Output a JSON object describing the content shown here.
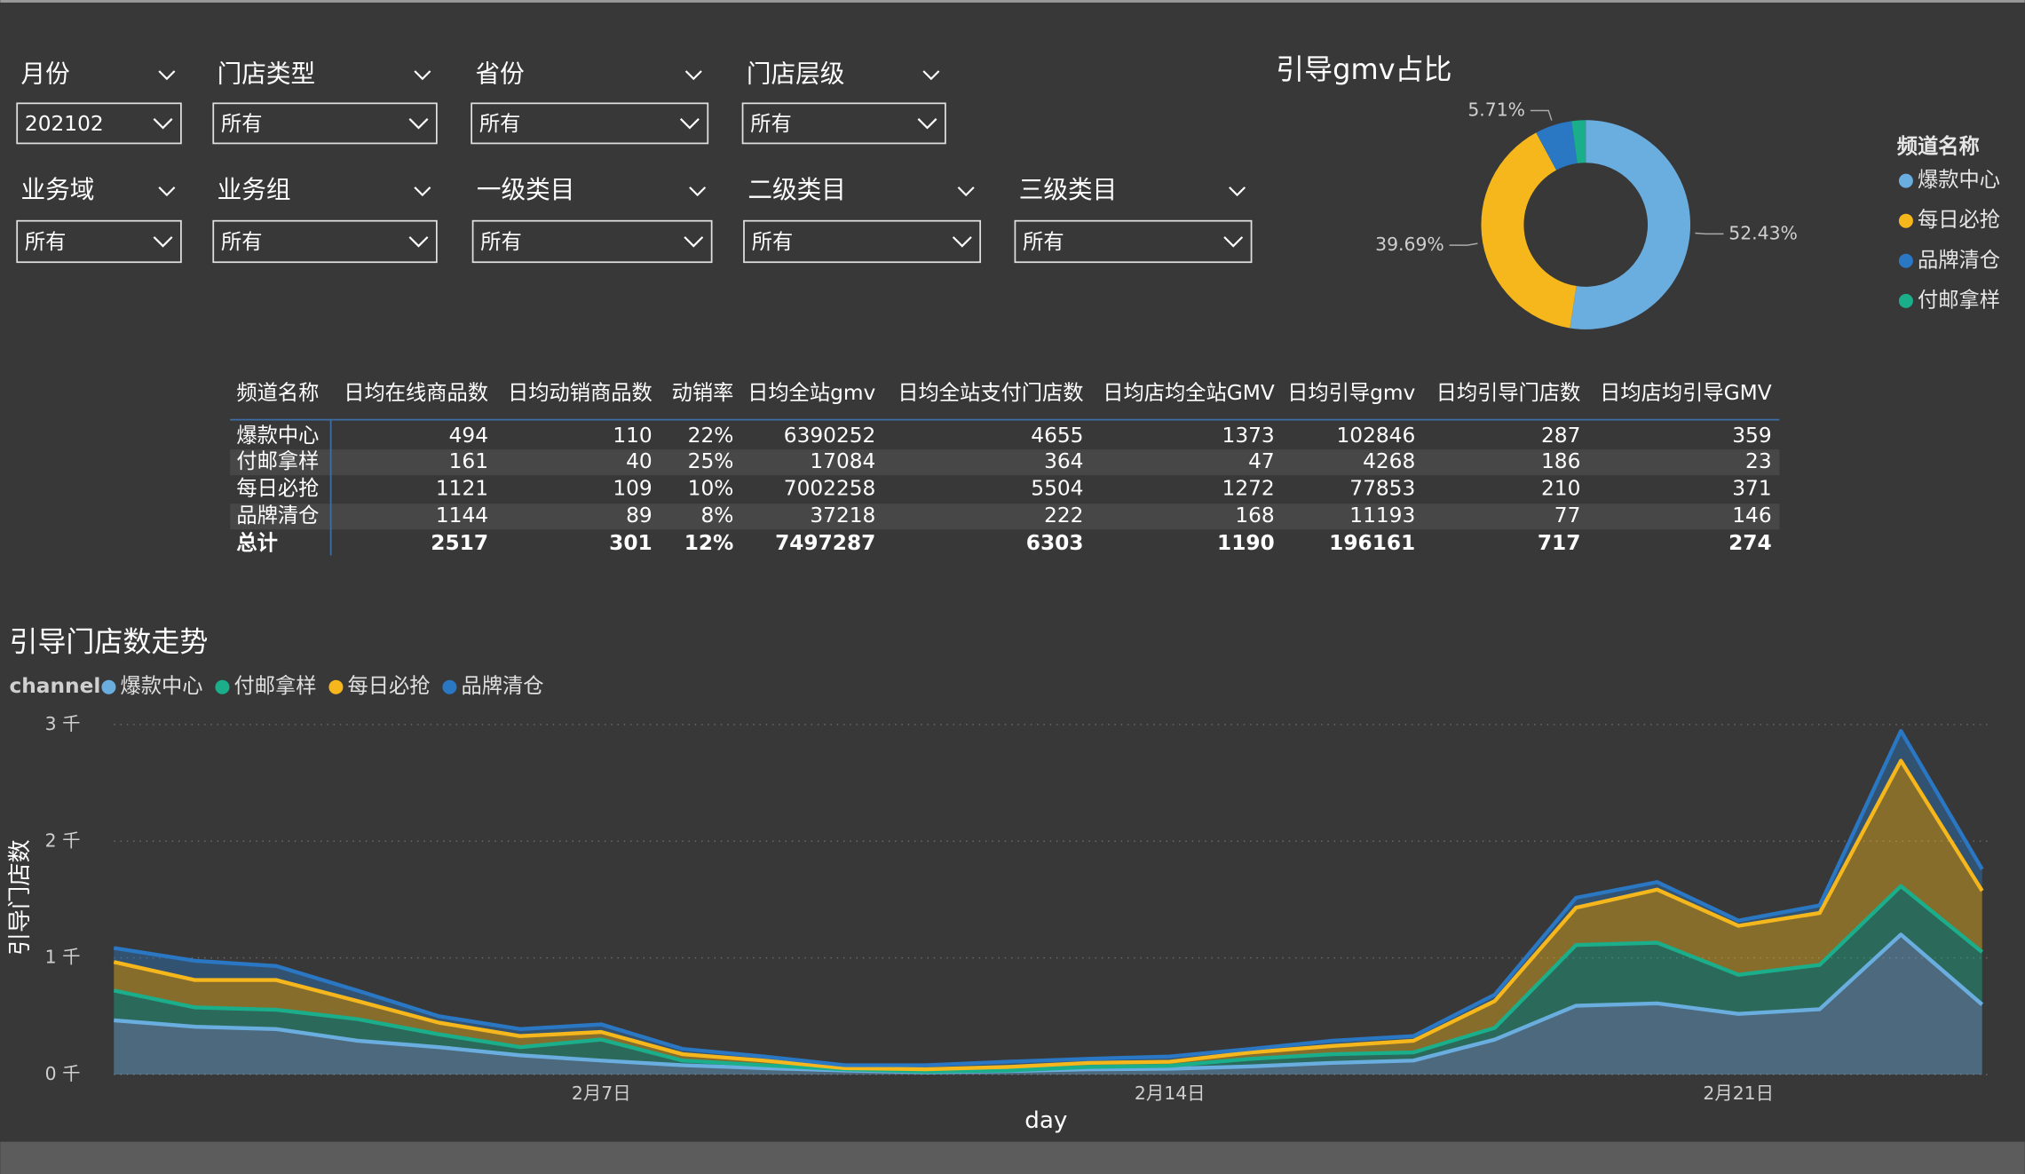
{
  "filters": [
    {
      "label": "月份",
      "value": "202102"
    },
    {
      "label": "门店类型",
      "value": "所有"
    },
    {
      "label": "省份",
      "value": "所有"
    },
    {
      "label": "门店层级",
      "value": "所有"
    },
    {
      "label": "业务域",
      "value": "所有"
    },
    {
      "label": "业务组",
      "value": "所有"
    },
    {
      "label": "一级类目",
      "value": "所有"
    },
    {
      "label": "二级类目",
      "value": "所有"
    },
    {
      "label": "三级类目",
      "value": "所有"
    }
  ],
  "table": {
    "header": [
      "频道名称",
      "日均在线商品数",
      "日均动销商品数",
      "动销率",
      "日均全站gmv",
      "日均全站支付门店数",
      "日均店均全站GMV",
      "日均引导gmv",
      "日均引导门店数",
      "日均店均引导GMV"
    ],
    "rows": [
      [
        "爆款中心",
        "494",
        "110",
        "22%",
        "6390252",
        "4655",
        "1373",
        "102846",
        "287",
        "359"
      ],
      [
        "付邮拿样",
        "161",
        "40",
        "25%",
        "17084",
        "364",
        "47",
        "4268",
        "186",
        "23"
      ],
      [
        "每日必抢",
        "1121",
        "109",
        "10%",
        "7002258",
        "5504",
        "1272",
        "77853",
        "210",
        "371"
      ],
      [
        "品牌清仓",
        "1144",
        "89",
        "8%",
        "37218",
        "222",
        "168",
        "11193",
        "77",
        "146"
      ]
    ],
    "total": [
      "总计",
      "2517",
      "301",
      "12%",
      "7497287",
      "6303",
      "1190",
      "196161",
      "717",
      "274"
    ]
  },
  "chart_data": [
    {
      "type": "pie",
      "donut": true,
      "title": "引导gmv占比",
      "legend_title": "频道名称",
      "categories": [
        "爆款中心",
        "每日必抢",
        "品牌清仓",
        "付邮拿样"
      ],
      "values": [
        52.43,
        39.69,
        5.71,
        2.17
      ],
      "value_labels": [
        "52.43%",
        "39.69%",
        "5.71%",
        null
      ],
      "colors": [
        "#6aaee0",
        "#f5b71c",
        "#2a77c4",
        "#1aae8b"
      ]
    },
    {
      "type": "area",
      "stacked": true,
      "title": "引导门店数走势",
      "legend_title": "channel",
      "xlabel": "day",
      "ylabel": "引导门店数",
      "x": [
        null,
        null,
        null,
        null,
        null,
        null,
        "2月7日",
        null,
        null,
        null,
        null,
        null,
        null,
        "2月14日",
        null,
        null,
        null,
        null,
        null,
        null,
        "2月21日",
        null,
        null,
        null
      ],
      "ylim": [
        0,
        3000
      ],
      "yticks": [
        {
          "value": 0,
          "label": "0 千"
        },
        {
          "value": 1000,
          "label": "1 千"
        },
        {
          "value": 2000,
          "label": "2 千"
        },
        {
          "value": 3000,
          "label": "3 千"
        }
      ],
      "grid": true,
      "series": [
        {
          "name": "爆款中心",
          "color": "#6aaee0",
          "values": [
            465,
            410,
            390,
            290,
            235,
            165,
            120,
            80,
            55,
            35,
            20,
            30,
            45,
            50,
            70,
            100,
            120,
            300,
            590,
            610,
            520,
            560,
            1200,
            600
          ]
        },
        {
          "name": "付邮拿样",
          "color": "#1aae8b",
          "values": [
            255,
            165,
            165,
            185,
            110,
            70,
            180,
            40,
            25,
            10,
            5,
            5,
            20,
            25,
            65,
            75,
            70,
            100,
            520,
            520,
            335,
            380,
            415,
            450
          ]
        },
        {
          "name": "每日必抢",
          "color": "#f5b71c",
          "values": [
            245,
            235,
            255,
            155,
            100,
            95,
            65,
            55,
            40,
            10,
            20,
            30,
            35,
            35,
            55,
            70,
            100,
            230,
            320,
            455,
            420,
            445,
            1075,
            525
          ]
        },
        {
          "name": "品牌清仓",
          "color": "#2a77c4",
          "values": [
            120,
            165,
            120,
            90,
            55,
            60,
            65,
            45,
            35,
            25,
            35,
            45,
            35,
            45,
            30,
            45,
            40,
            55,
            85,
            65,
            45,
            65,
            255,
            185
          ]
        }
      ]
    }
  ]
}
